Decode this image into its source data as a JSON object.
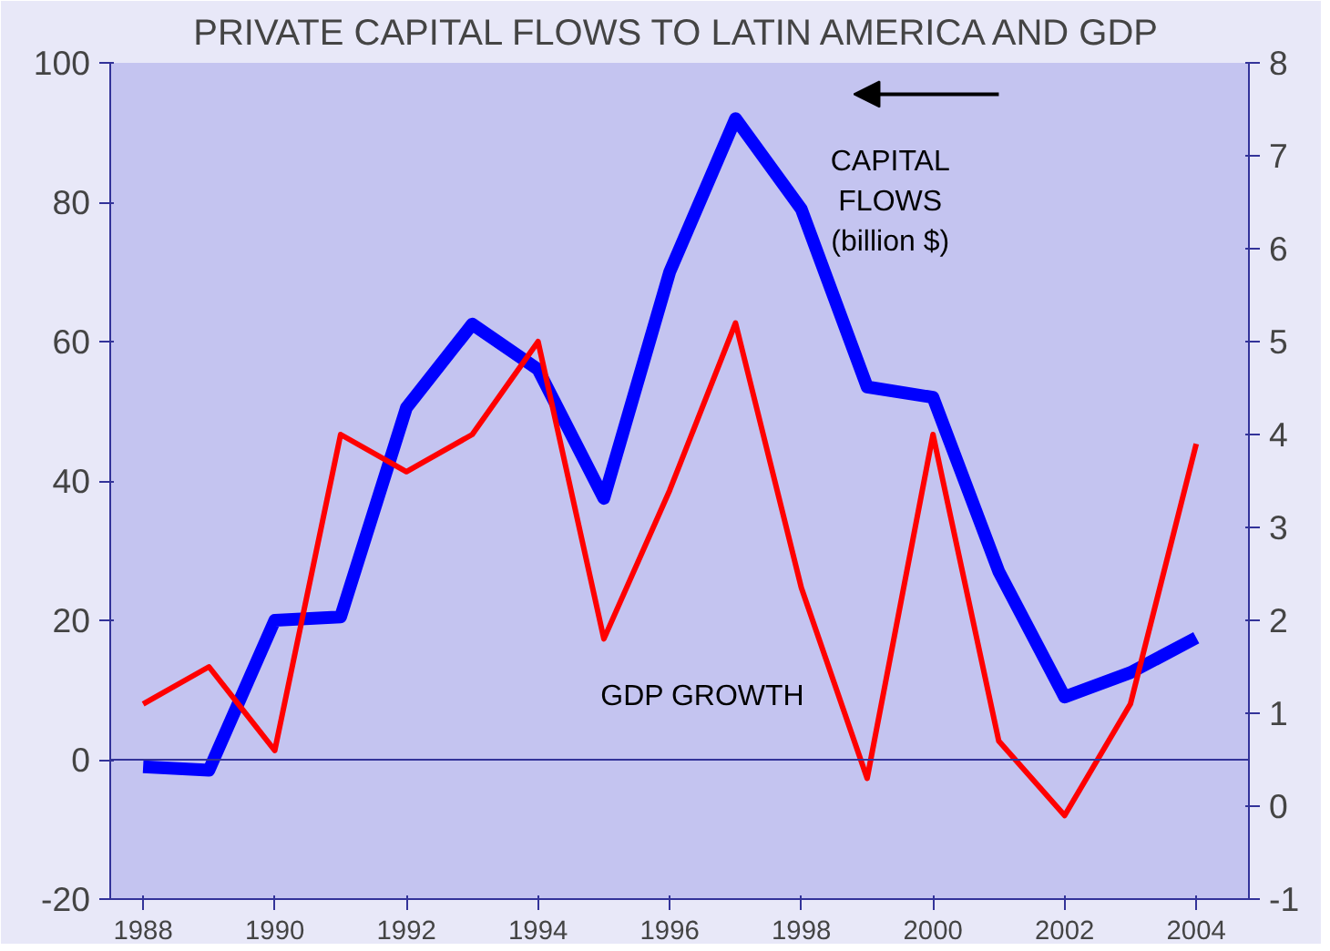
{
  "chart_data": {
    "type": "line",
    "title": "PRIVATE CAPITAL FLOWS TO LATIN AMERICA AND GDP",
    "x": [
      1988,
      1989,
      1990,
      1991,
      1992,
      1993,
      1994,
      1995,
      1996,
      1997,
      1998,
      1999,
      2000,
      2001,
      2002,
      2003,
      2004
    ],
    "series": [
      {
        "name": "CAPITAL FLOWS (billion $)",
        "color": "#0000ff",
        "values": [
          -1,
          -1.5,
          20,
          20.5,
          50.5,
          62.5,
          56,
          37.5,
          70,
          92,
          79,
          53.5,
          52,
          27,
          9,
          12.5,
          17.5
        ]
      },
      {
        "name": "GDP GROWTH",
        "color": "#ff0000",
        "axis": "y2",
        "values": [
          1.1,
          1.5,
          0.6,
          4.0,
          3.6,
          4.0,
          5.0,
          1.8,
          3.4,
          5.2,
          2.35,
          0.3,
          4.0,
          0.7,
          -0.1,
          1.1,
          3.9
        ]
      }
    ],
    "xlim": [
      1987.5,
      2004.8
    ],
    "xticks": [
      1988,
      1990,
      1992,
      1994,
      1996,
      1998,
      2000,
      2002,
      2004
    ],
    "ylim": [
      -20,
      100
    ],
    "yticks": [
      -20,
      0,
      20,
      40,
      60,
      80,
      100
    ],
    "y2lim": [
      -1,
      8
    ],
    "y2ticks": [
      -1,
      0,
      1,
      2,
      3,
      4,
      5,
      6,
      7,
      8
    ],
    "ref_lines": [
      {
        "axis": "y",
        "value": 0,
        "color": "#333399"
      }
    ],
    "grid": false,
    "legend": false,
    "marker": "none",
    "line_style": "solid"
  }
}
